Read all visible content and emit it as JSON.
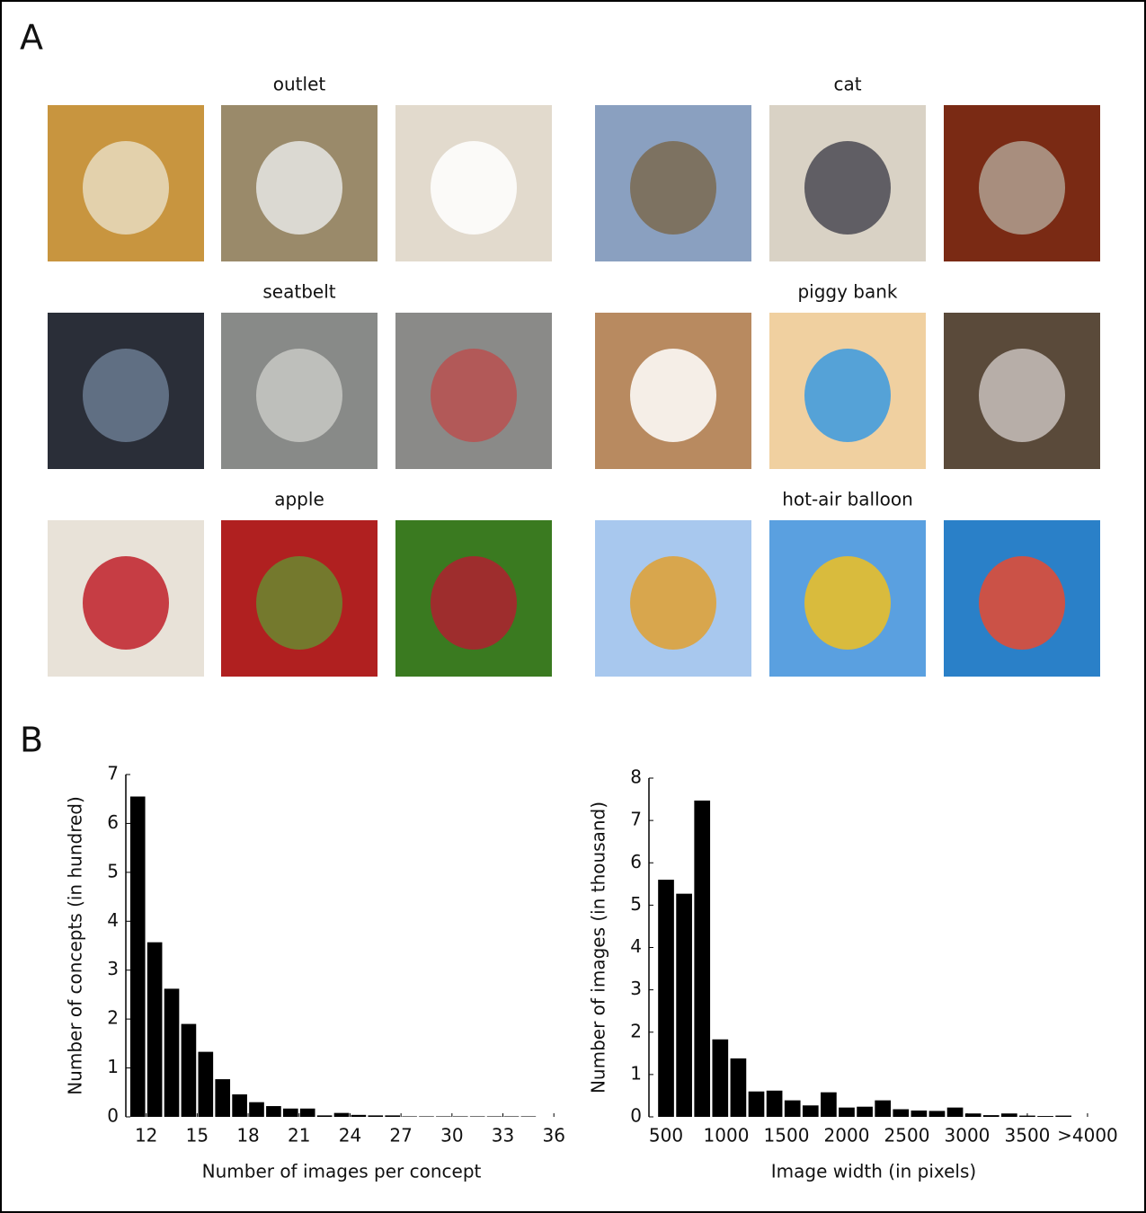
{
  "panels": [
    "A",
    "B"
  ],
  "concepts": [
    "outlet",
    "cat",
    "seatbelt",
    "piggy bank",
    "apple",
    "hot-air balloon"
  ],
  "chart_data": [
    {
      "type": "histogram",
      "xlabel": "Number of images per concept",
      "ylabel": "Number of concepts (in hundred)",
      "bins": [
        11,
        12,
        13,
        14,
        15,
        16,
        17,
        18,
        19,
        20,
        21,
        22,
        23,
        24,
        25,
        26,
        27,
        28,
        29,
        30,
        31,
        32,
        33,
        34,
        35
      ],
      "values": [
        6.55,
        3.57,
        2.62,
        1.9,
        1.33,
        0.77,
        0.46,
        0.3,
        0.22,
        0.17,
        0.17,
        0.03,
        0.08,
        0.04,
        0.03,
        0.03,
        0.01,
        0.01,
        0.01,
        0.01,
        0.01,
        0.01,
        0.01,
        0.01
      ],
      "color": "#000000",
      "xlim": [
        10.8,
        36.2
      ],
      "xticks": [
        12,
        15,
        18,
        21,
        24,
        27,
        30,
        33,
        36
      ],
      "ylim": [
        0,
        7
      ],
      "yticks": [
        0,
        1,
        2,
        3,
        4,
        5,
        6,
        7
      ]
    },
    {
      "type": "histogram",
      "xlabel": "Image width (in pixels)",
      "ylabel": "Number of images (in thousand)",
      "bins": [
        425,
        575,
        725,
        875,
        1025,
        1175,
        1325,
        1475,
        1625,
        1775,
        1925,
        2075,
        2225,
        2375,
        2525,
        2675,
        2825,
        2975,
        3125,
        3275,
        3425,
        3575,
        3725,
        3875
      ],
      "values": [
        5.6,
        5.27,
        7.47,
        1.83,
        1.38,
        0.6,
        0.62,
        0.39,
        0.27,
        0.58,
        0.22,
        0.24,
        0.39,
        0.18,
        0.15,
        0.14,
        0.22,
        0.08,
        0.04,
        0.08,
        0.03,
        0.02,
        0.03
      ],
      "color": "#000000",
      "xlim": [
        358,
        4090
      ],
      "xticks": [
        500,
        1000,
        1500,
        2000,
        2500,
        3000,
        3500,
        {
          "value": 4000,
          "label": ">4000"
        }
      ],
      "ylim": [
        0,
        8
      ],
      "yticks": [
        0,
        1,
        2,
        3,
        4,
        5,
        6,
        7,
        8
      ]
    }
  ]
}
